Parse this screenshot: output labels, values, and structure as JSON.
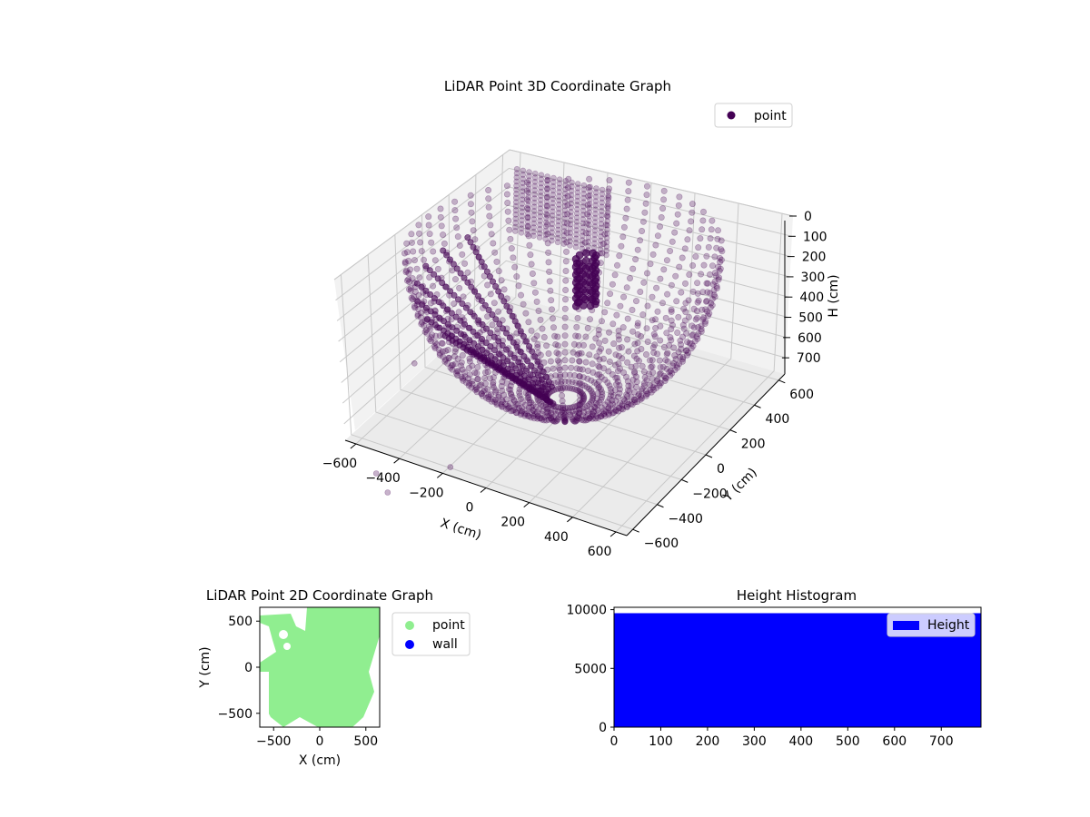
{
  "chart_data": [
    {
      "type": "scatter",
      "title": "LiDAR Point 3D Coordinate Graph",
      "xlabel": "X (cm)",
      "ylabel": "Y (cm)",
      "zlabel": "H (cm)",
      "xlim": [
        -650,
        650
      ],
      "ylim": [
        -650,
        650
      ],
      "zlim": [
        0,
        780
      ],
      "z_inverted": true,
      "x_ticks": [
        "−600",
        "−400",
        "−200",
        "0",
        "200",
        "400",
        "600"
      ],
      "y_ticks": [
        "−600",
        "−400",
        "−200",
        "0",
        "200",
        "400",
        "600"
      ],
      "z_ticks": [
        "0",
        "100",
        "200",
        "300",
        "400",
        "500",
        "600",
        "700"
      ],
      "grid": true,
      "legend_position": "top-right",
      "series": [
        {
          "name": "point",
          "color": "#440154",
          "opacity": 0.3,
          "shape": "hemispherical bowl of scan arcs"
        }
      ]
    },
    {
      "type": "scatter",
      "title": "LiDAR Point 2D Coordinate Graph",
      "xlabel": "X (cm)",
      "ylabel": "Y (cm)",
      "xlim": [
        -650,
        650
      ],
      "ylim": [
        -650,
        650
      ],
      "x_ticks": [
        "−500",
        "0",
        "500"
      ],
      "y_ticks": [
        "−500",
        "0",
        "500"
      ],
      "legend_position": "outside-right",
      "series": [
        {
          "name": "point",
          "color": "#90ee90"
        },
        {
          "name": "wall",
          "color": "#0000ff"
        }
      ]
    },
    {
      "type": "bar",
      "title": "Height Histogram",
      "xlabel": "",
      "ylabel": "",
      "xlim": [
        0,
        785
      ],
      "ylim": [
        0,
        10200
      ],
      "x_ticks": [
        "0",
        "100",
        "200",
        "300",
        "400",
        "500",
        "600",
        "700"
      ],
      "y_ticks": [
        "0",
        "5000",
        "10000"
      ],
      "legend_position": "top-right",
      "series": [
        {
          "name": "Height",
          "color": "#0000ff",
          "bins": [
            [
              0,
              785,
              9700
            ]
          ]
        }
      ]
    }
  ]
}
